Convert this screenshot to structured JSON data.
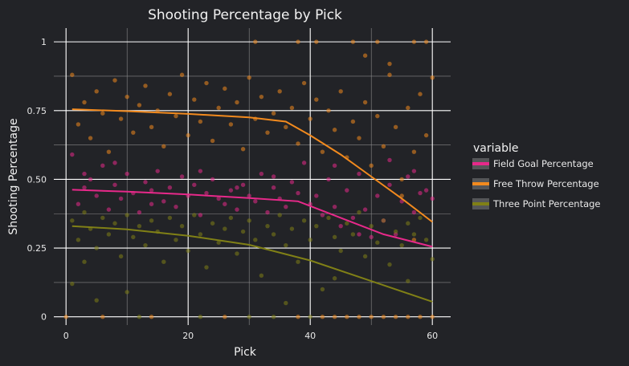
{
  "chart_data": {
    "type": "scatter",
    "title": "Shooting Percentage by Pick",
    "xlabel": "Pick",
    "ylabel": "Shooting Percentage",
    "xlim": [
      -2,
      63
    ],
    "ylim": [
      -0.03,
      1.05
    ],
    "x_ticks": [
      0,
      20,
      40,
      60
    ],
    "x_tick_labels": [
      "0",
      "20",
      "40",
      "60"
    ],
    "y_ticks": [
      0,
      0.25,
      0.5,
      0.75,
      1
    ],
    "y_tick_labels": [
      "0",
      "0.25",
      "0.50",
      "0.75",
      "1"
    ],
    "grid": true,
    "legend": {
      "title": "variable",
      "position": "right"
    },
    "series": [
      {
        "name": "Field Goal Percentage",
        "color": "#e7298a",
        "trend": {
          "x": [
            1,
            10,
            20,
            30,
            38,
            45,
            52,
            60
          ],
          "y": [
            0.462,
            0.455,
            0.445,
            0.432,
            0.42,
            0.36,
            0.3,
            0.255
          ]
        },
        "points": [
          [
            1,
            0.59
          ],
          [
            2,
            0.41
          ],
          [
            3,
            0.47
          ],
          [
            4,
            0.5
          ],
          [
            5,
            0.44
          ],
          [
            6,
            0.55
          ],
          [
            7,
            0.39
          ],
          [
            8,
            0.48
          ],
          [
            9,
            0.43
          ],
          [
            10,
            0.52
          ],
          [
            11,
            0.45
          ],
          [
            12,
            0.38
          ],
          [
            13,
            0.49
          ],
          [
            14,
            0.46
          ],
          [
            15,
            0.53
          ],
          [
            16,
            0.42
          ],
          [
            17,
            0.47
          ],
          [
            18,
            0.4
          ],
          [
            19,
            0.51
          ],
          [
            20,
            0.44
          ],
          [
            21,
            0.48
          ],
          [
            22,
            0.37
          ],
          [
            23,
            0.45
          ],
          [
            24,
            0.5
          ],
          [
            25,
            0.43
          ],
          [
            26,
            0.41
          ],
          [
            27,
            0.46
          ],
          [
            28,
            0.39
          ],
          [
            29,
            0.48
          ],
          [
            30,
            0.44
          ],
          [
            31,
            0.42
          ],
          [
            32,
            0.52
          ],
          [
            33,
            0.38
          ],
          [
            34,
            0.47
          ],
          [
            35,
            0.43
          ],
          [
            36,
            0.4
          ],
          [
            37,
            0.49
          ],
          [
            38,
            0.45
          ],
          [
            39,
            0.56
          ],
          [
            40,
            0.41
          ],
          [
            41,
            0.44
          ],
          [
            42,
            0.37
          ],
          [
            43,
            0.5
          ],
          [
            44,
            0.4
          ],
          [
            45,
            0.33
          ],
          [
            46,
            0.46
          ],
          [
            47,
            0.36
          ],
          [
            48,
            0.52
          ],
          [
            49,
            0.39
          ],
          [
            50,
            0.29
          ],
          [
            51,
            0.44
          ],
          [
            52,
            0.35
          ],
          [
            53,
            0.48
          ],
          [
            54,
            0.3
          ],
          [
            55,
            0.42
          ],
          [
            56,
            0.51
          ],
          [
            57,
            0.38
          ],
          [
            58,
            0.45
          ],
          [
            59,
            0.46
          ],
          [
            60,
            0.43
          ],
          [
            3,
            0.52
          ],
          [
            8,
            0.56
          ],
          [
            14,
            0.41
          ],
          [
            22,
            0.53
          ],
          [
            28,
            0.47
          ],
          [
            34,
            0.51
          ],
          [
            44,
            0.55
          ],
          [
            53,
            0.57
          ],
          [
            57,
            0.53
          ],
          [
            48,
            0.3
          ]
        ]
      },
      {
        "name": "Free Throw Percentage",
        "color": "#f28a1e",
        "trend": {
          "x": [
            1,
            10,
            20,
            30,
            36,
            40,
            45,
            50,
            55,
            60
          ],
          "y": [
            0.755,
            0.748,
            0.738,
            0.725,
            0.71,
            0.66,
            0.59,
            0.51,
            0.43,
            0.345
          ]
        },
        "points": [
          [
            1,
            0.88
          ],
          [
            2,
            0.7
          ],
          [
            3,
            0.78
          ],
          [
            4,
            0.65
          ],
          [
            5,
            0.82
          ],
          [
            6,
            0.74
          ],
          [
            7,
            0.6
          ],
          [
            8,
            0.86
          ],
          [
            9,
            0.72
          ],
          [
            10,
            0.8
          ],
          [
            11,
            0.67
          ],
          [
            12,
            0.77
          ],
          [
            13,
            0.84
          ],
          [
            14,
            0.69
          ],
          [
            15,
            0.75
          ],
          [
            16,
            0.62
          ],
          [
            17,
            0.81
          ],
          [
            18,
            0.73
          ],
          [
            19,
            0.88
          ],
          [
            20,
            0.66
          ],
          [
            21,
            0.79
          ],
          [
            22,
            0.71
          ],
          [
            23,
            0.85
          ],
          [
            24,
            0.64
          ],
          [
            25,
            0.76
          ],
          [
            26,
            0.83
          ],
          [
            27,
            0.7
          ],
          [
            28,
            0.78
          ],
          [
            29,
            0.61
          ],
          [
            30,
            0.87
          ],
          [
            31,
            0.72
          ],
          [
            32,
            0.8
          ],
          [
            33,
            0.67
          ],
          [
            34,
            0.74
          ],
          [
            35,
            0.82
          ],
          [
            36,
            0.69
          ],
          [
            37,
            0.76
          ],
          [
            38,
            0.63
          ],
          [
            39,
            0.85
          ],
          [
            40,
            0.72
          ],
          [
            41,
            0.79
          ],
          [
            42,
            0.6
          ],
          [
            43,
            0.75
          ],
          [
            44,
            0.68
          ],
          [
            45,
            0.82
          ],
          [
            46,
            0.58
          ],
          [
            47,
            0.71
          ],
          [
            48,
            0.65
          ],
          [
            49,
            0.78
          ],
          [
            50,
            0.55
          ],
          [
            51,
            0.73
          ],
          [
            52,
            0.62
          ],
          [
            53,
            0.88
          ],
          [
            54,
            0.69
          ],
          [
            55,
            0.5
          ],
          [
            56,
            0.76
          ],
          [
            57,
            0.6
          ],
          [
            58,
            0.81
          ],
          [
            59,
            0.66
          ],
          [
            60,
            0.87
          ],
          [
            31,
            1
          ],
          [
            38,
            1
          ],
          [
            41,
            1
          ],
          [
            47,
            1
          ],
          [
            51,
            1
          ],
          [
            57,
            1
          ],
          [
            59,
            1
          ],
          [
            53,
            0.92
          ],
          [
            49,
            0.95
          ],
          [
            0,
            0
          ],
          [
            6,
            0
          ],
          [
            14,
            0
          ],
          [
            26,
            0
          ],
          [
            38,
            0
          ],
          [
            42,
            0
          ],
          [
            44,
            0
          ],
          [
            46,
            0
          ],
          [
            48,
            0
          ],
          [
            50,
            0
          ],
          [
            52,
            0
          ],
          [
            54,
            0
          ],
          [
            56,
            0
          ],
          [
            58,
            0
          ],
          [
            60,
            0
          ],
          [
            57,
            0.28
          ],
          [
            55,
            0.44
          ]
        ]
      },
      {
        "name": "Three Point Percentage",
        "color": "#808016",
        "trend": {
          "x": [
            1,
            10,
            20,
            30,
            40,
            50,
            60
          ],
          "y": [
            0.33,
            0.318,
            0.295,
            0.262,
            0.205,
            0.13,
            0.055
          ]
        },
        "points": [
          [
            1,
            0.35
          ],
          [
            2,
            0.28
          ],
          [
            3,
            0.38
          ],
          [
            4,
            0.32
          ],
          [
            5,
            0.25
          ],
          [
            6,
            0.36
          ],
          [
            7,
            0.3
          ],
          [
            8,
            0.34
          ],
          [
            9,
            0.22
          ],
          [
            10,
            0.37
          ],
          [
            11,
            0.29
          ],
          [
            12,
            0.33
          ],
          [
            13,
            0.26
          ],
          [
            14,
            0.35
          ],
          [
            15,
            0.31
          ],
          [
            16,
            0.2
          ],
          [
            17,
            0.36
          ],
          [
            18,
            0.28
          ],
          [
            19,
            0.33
          ],
          [
            20,
            0.24
          ],
          [
            21,
            0.37
          ],
          [
            22,
            0.3
          ],
          [
            23,
            0.18
          ],
          [
            24,
            0.34
          ],
          [
            25,
            0.27
          ],
          [
            26,
            0.32
          ],
          [
            27,
            0.36
          ],
          [
            28,
            0.23
          ],
          [
            29,
            0.31
          ],
          [
            30,
            0.35
          ],
          [
            31,
            0.28
          ],
          [
            32,
            0.15
          ],
          [
            33,
            0.33
          ],
          [
            34,
            0.3
          ],
          [
            35,
            0.37
          ],
          [
            36,
            0.26
          ],
          [
            37,
            0.32
          ],
          [
            38,
            0.2
          ],
          [
            39,
            0.35
          ],
          [
            40,
            0.28
          ],
          [
            41,
            0.33
          ],
          [
            42,
            0.1
          ],
          [
            43,
            0.36
          ],
          [
            44,
            0.29
          ],
          [
            45,
            0.24
          ],
          [
            46,
            0.34
          ],
          [
            47,
            0.3
          ],
          [
            48,
            0.38
          ],
          [
            49,
            0.22
          ],
          [
            50,
            0.33
          ],
          [
            51,
            0.27
          ],
          [
            52,
            0.35
          ],
          [
            53,
            0.19
          ],
          [
            54,
            0.31
          ],
          [
            55,
            0.26
          ],
          [
            56,
            0.34
          ],
          [
            57,
            0.3
          ],
          [
            58,
            0.36
          ],
          [
            59,
            0.28
          ],
          [
            60,
            0.21
          ],
          [
            1,
            0.12
          ],
          [
            5,
            0.06
          ],
          [
            10,
            0.09
          ],
          [
            3,
            0.2
          ],
          [
            36,
            0.05
          ],
          [
            44,
            0.14
          ],
          [
            56,
            0.13
          ],
          [
            12,
            0
          ],
          [
            22,
            0
          ],
          [
            30,
            0
          ],
          [
            34,
            0
          ],
          [
            40,
            0
          ]
        ]
      }
    ]
  }
}
